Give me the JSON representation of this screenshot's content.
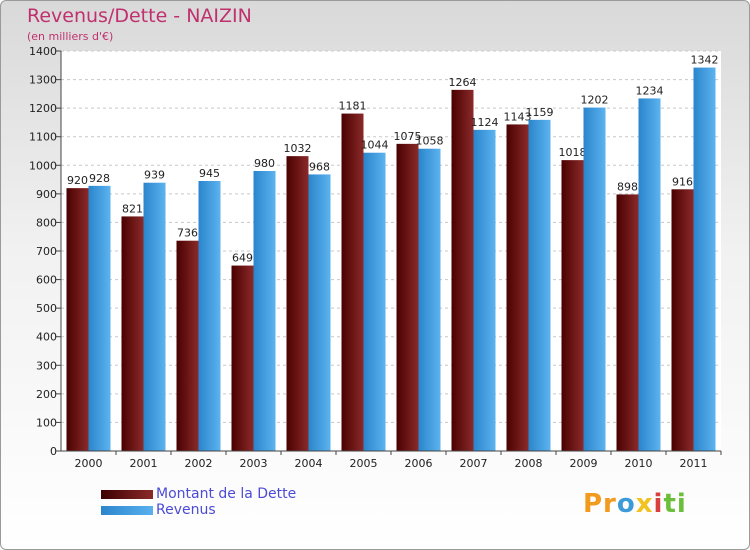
{
  "header": {
    "title": "Revenus/Dette - NAIZIN",
    "subtitle": "(en milliers d'€)"
  },
  "legend": {
    "dette_label": "Montant de la Dette",
    "revenus_label": "Revenus"
  },
  "logo": {
    "p1": "Pr",
    "p2": "o",
    "p3": "x",
    "p4": "i",
    "p5": "ti"
  },
  "colors": {
    "dette_dark": "#4a0000",
    "dette_light": "#8b2a2a",
    "revenus_dark": "#2a85cc",
    "revenus_light": "#5cb3ef",
    "title": "#c0306e",
    "legend_text": "#4b4bd6"
  },
  "chart_data": {
    "type": "bar",
    "title": "Revenus/Dette - NAIZIN",
    "subtitle": "(en milliers d'€)",
    "categories": [
      "2000",
      "2001",
      "2002",
      "2003",
      "2004",
      "2005",
      "2006",
      "2007",
      "2008",
      "2009",
      "2010",
      "2011"
    ],
    "series": [
      {
        "name": "Montant de la Dette",
        "values": [
          920,
          821,
          736,
          649,
          1032,
          1181,
          1075,
          1264,
          1143,
          1018,
          898,
          916
        ]
      },
      {
        "name": "Revenus",
        "values": [
          928,
          939,
          945,
          980,
          968,
          1044,
          1058,
          1124,
          1159,
          1202,
          1234,
          1342
        ]
      }
    ],
    "yticks": [
      0,
      100,
      200,
      300,
      400,
      500,
      600,
      700,
      800,
      900,
      1000,
      1100,
      1200,
      1300,
      1400
    ],
    "ylim": [
      0,
      1400
    ],
    "grid": true,
    "legend_position": "bottom-left"
  }
}
